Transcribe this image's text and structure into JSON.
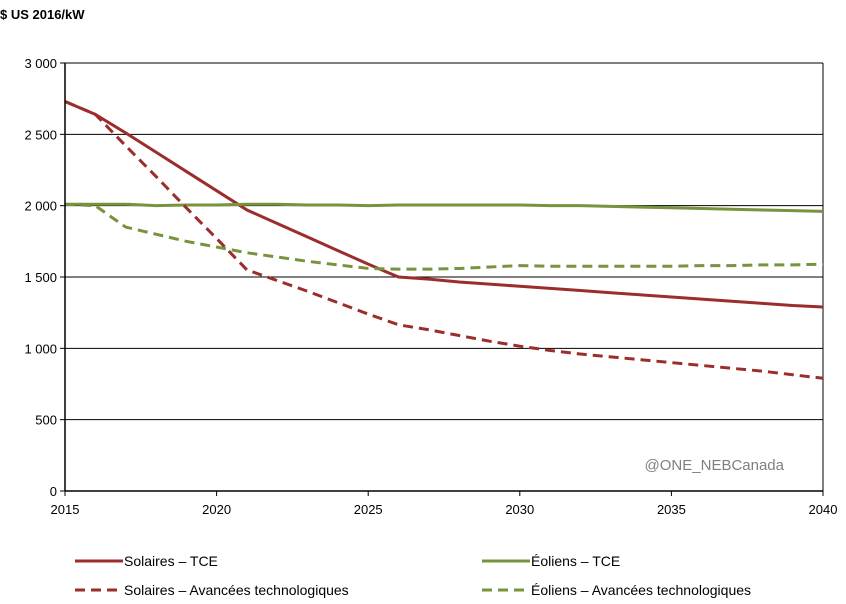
{
  "chart_data": {
    "type": "line",
    "title": "",
    "ylabel": "$ US 2016/kW",
    "xlabel": "",
    "xlim": [
      2015,
      2040
    ],
    "ylim": [
      0,
      3000
    ],
    "x_ticks": [
      2015,
      2020,
      2025,
      2030,
      2035,
      2040
    ],
    "x_tick_labels": [
      "2015",
      "2020",
      "2025",
      "2030",
      "2035",
      "2040"
    ],
    "y_ticks": [
      0,
      500,
      1000,
      1500,
      2000,
      2500,
      3000
    ],
    "y_tick_labels": [
      "0",
      "500",
      "1 000",
      "1 500",
      "2 000",
      "2 500",
      "3 000"
    ],
    "grid": "horizontal",
    "legend_placement": "bottom",
    "watermark": "@ONE_NEBCanada",
    "x": [
      2015,
      2016,
      2017,
      2018,
      2019,
      2020,
      2021,
      2022,
      2023,
      2024,
      2025,
      2026,
      2027,
      2028,
      2029,
      2030,
      2031,
      2032,
      2033,
      2034,
      2035,
      2036,
      2037,
      2038,
      2039,
      2040
    ],
    "series": [
      {
        "name": "Solaires – TCE",
        "color": "#9B2D2D",
        "dash": false,
        "values": [
          2730,
          2640,
          2510,
          2375,
          2240,
          2105,
          1970,
          1875,
          1780,
          1685,
          1590,
          1500,
          1485,
          1465,
          1450,
          1435,
          1420,
          1405,
          1390,
          1375,
          1360,
          1345,
          1330,
          1315,
          1300,
          1290
        ]
      },
      {
        "name": "Éoliens – TCE",
        "color": "#77933C",
        "dash": false,
        "values": [
          2010,
          2010,
          2010,
          2000,
          2005,
          2005,
          2010,
          2010,
          2005,
          2005,
          2000,
          2005,
          2005,
          2005,
          2005,
          2005,
          2000,
          2000,
          1995,
          1990,
          1985,
          1980,
          1975,
          1970,
          1965,
          1960
        ]
      },
      {
        "name": "Solaires – Avancées technologiques",
        "color": "#9B2D2D",
        "dash": true,
        "values": [
          2730,
          2640,
          2420,
          2205,
          1985,
          1770,
          1550,
          1475,
          1400,
          1320,
          1240,
          1165,
          1130,
          1090,
          1050,
          1015,
          985,
          960,
          940,
          920,
          900,
          880,
          860,
          840,
          815,
          790
        ]
      },
      {
        "name": "Éoliens – Avancées technologiques",
        "color": "#77933C",
        "dash": true,
        "values": [
          2010,
          2000,
          1850,
          1800,
          1750,
          1710,
          1670,
          1640,
          1610,
          1585,
          1560,
          1555,
          1555,
          1560,
          1570,
          1580,
          1575,
          1575,
          1575,
          1575,
          1575,
          1580,
          1580,
          1585,
          1585,
          1590
        ]
      }
    ]
  }
}
